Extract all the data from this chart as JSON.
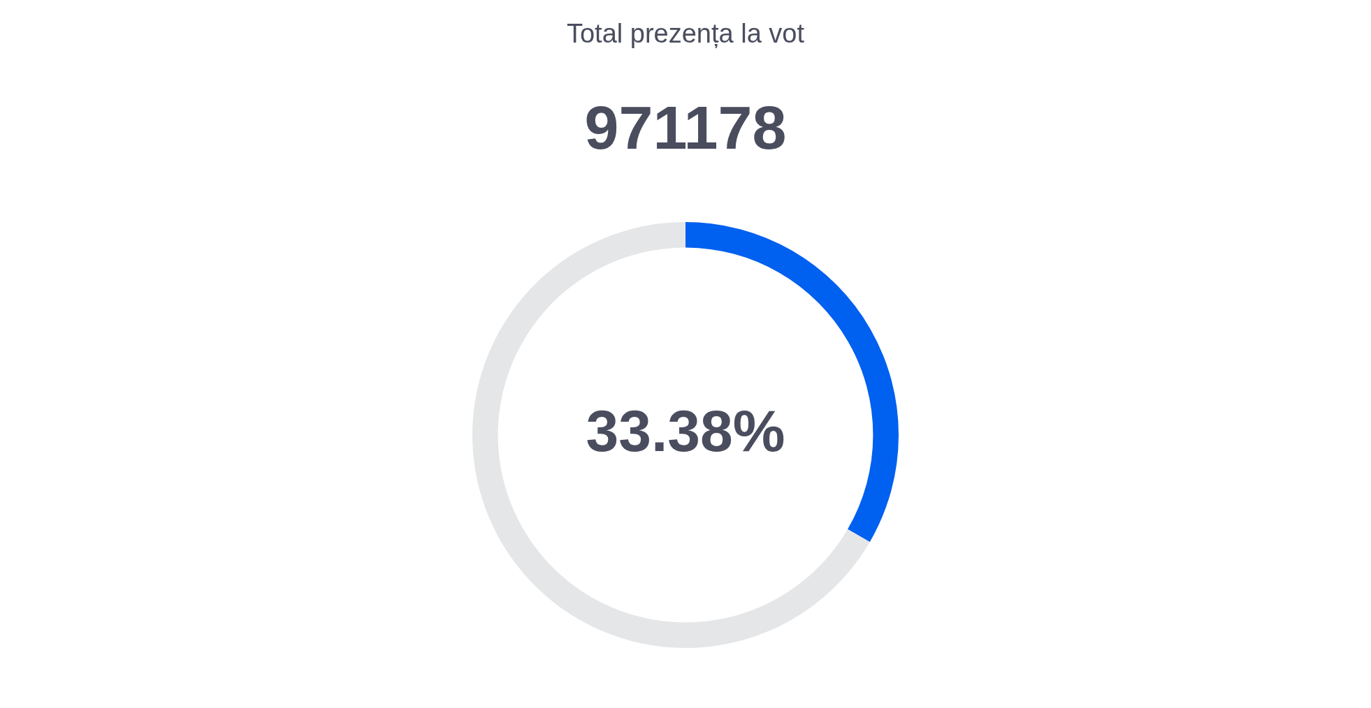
{
  "chart_data": {
    "type": "donut",
    "title": "Total prezența la vot",
    "subtitle": "971178",
    "categories": [
      null,
      null
    ],
    "values": [
      33.38,
      66.62
    ],
    "colors": [
      "#0060f0",
      "#e5e6e8"
    ],
    "annotations": [
      "33.38%"
    ],
    "legend": false
  }
}
